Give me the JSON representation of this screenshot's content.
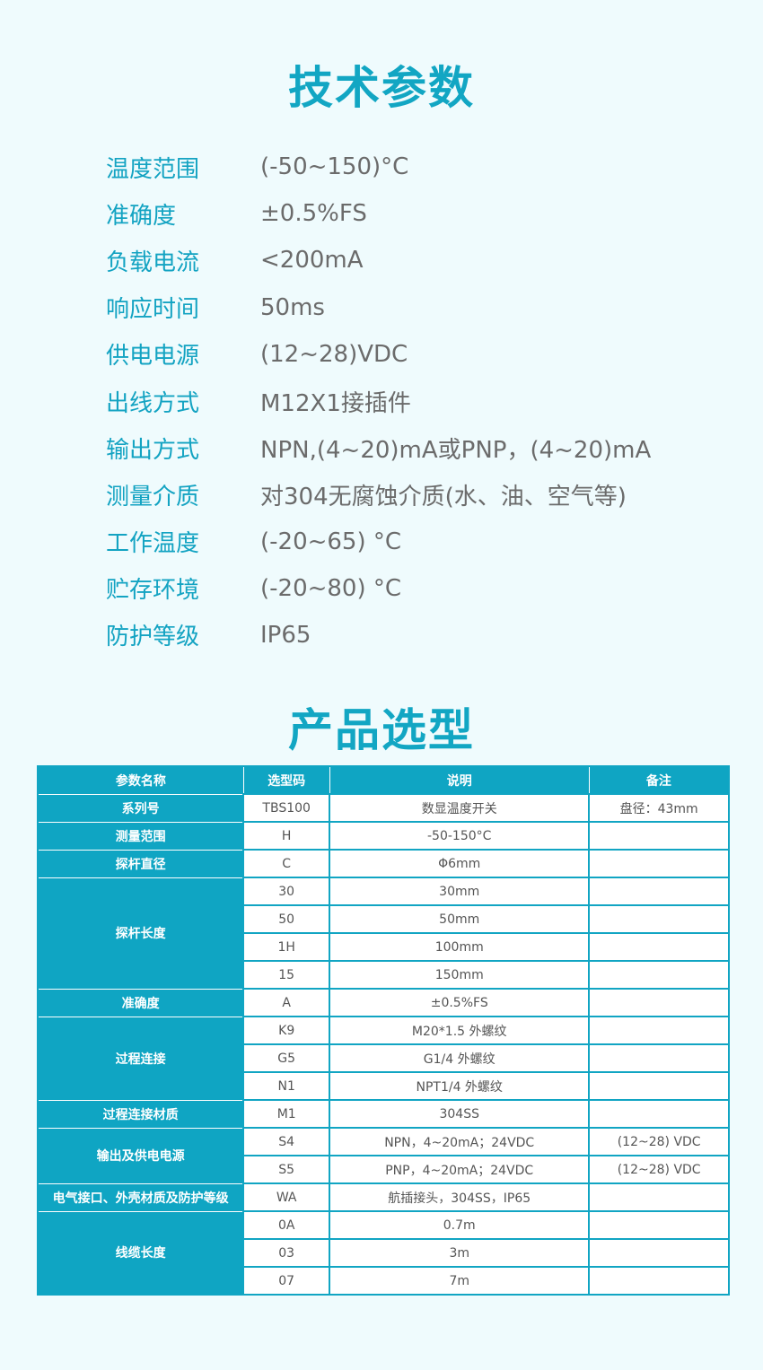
{
  "spec_title": "技术参数",
  "specs": [
    {
      "label": "温度范围",
      "value": "(-50~150)°C"
    },
    {
      "label": "准确度",
      "value": "±0.5%FS"
    },
    {
      "label": "负载电流",
      "value": "<200mA"
    },
    {
      "label": "响应时间",
      "value": "50ms"
    },
    {
      "label": "供电电源",
      "value": "(12~28)VDC"
    },
    {
      "label": "出线方式",
      "value": "M12X1接插件"
    },
    {
      "label": "输出方式",
      "value": "NPN,(4~20)mA或PNP，(4~20)mA"
    },
    {
      "label": "测量介质",
      "value": "对304无腐蚀介质(水、油、空气等)"
    },
    {
      "label": "工作温度",
      "value": "(-20~65) °C"
    },
    {
      "label": "贮存环境",
      "value": "(-20~80) °C"
    },
    {
      "label": "防护等级",
      "value": "IP65"
    }
  ],
  "selection_title": "产品选型",
  "table": {
    "headers": [
      "参数名称",
      "选型码",
      "说明",
      "备注"
    ],
    "groups": [
      {
        "name": "系列号",
        "rows": [
          [
            "TBS100",
            "数显温度开关",
            "盘径：43mm"
          ]
        ]
      },
      {
        "name": "测量范围",
        "rows": [
          [
            "H",
            "-50-150°C",
            ""
          ]
        ]
      },
      {
        "name": "探杆直径",
        "rows": [
          [
            "C",
            "Φ6mm",
            ""
          ]
        ]
      },
      {
        "name": "探杆长度",
        "rows": [
          [
            "30",
            "30mm",
            ""
          ],
          [
            "50",
            "50mm",
            ""
          ],
          [
            "1H",
            "100mm",
            ""
          ],
          [
            "15",
            "150mm",
            ""
          ]
        ]
      },
      {
        "name": "准确度",
        "rows": [
          [
            "A",
            "±0.5%FS",
            ""
          ]
        ]
      },
      {
        "name": "过程连接",
        "rows": [
          [
            "K9",
            "M20*1.5 外螺纹",
            ""
          ],
          [
            "G5",
            "G1/4 外螺纹",
            ""
          ],
          [
            "N1",
            "NPT1/4 外螺纹",
            ""
          ]
        ]
      },
      {
        "name": "过程连接材质",
        "rows": [
          [
            "M1",
            "304SS",
            ""
          ]
        ]
      },
      {
        "name": "输出及供电电源",
        "rows": [
          [
            "S4",
            "NPN，4~20mA；24VDC",
            "(12~28) VDC"
          ],
          [
            "S5",
            "PNP，4~20mA；24VDC",
            "(12~28) VDC"
          ]
        ]
      },
      {
        "name": "电气接口、外壳材质及防护等级",
        "rows": [
          [
            "WA",
            "航插接头，304SS，IP65",
            ""
          ]
        ]
      },
      {
        "name": "线缆长度",
        "rows": [
          [
            "0A",
            "0.7m",
            ""
          ],
          [
            "03",
            "3m",
            ""
          ],
          [
            "07",
            "7m",
            ""
          ]
        ]
      }
    ]
  }
}
